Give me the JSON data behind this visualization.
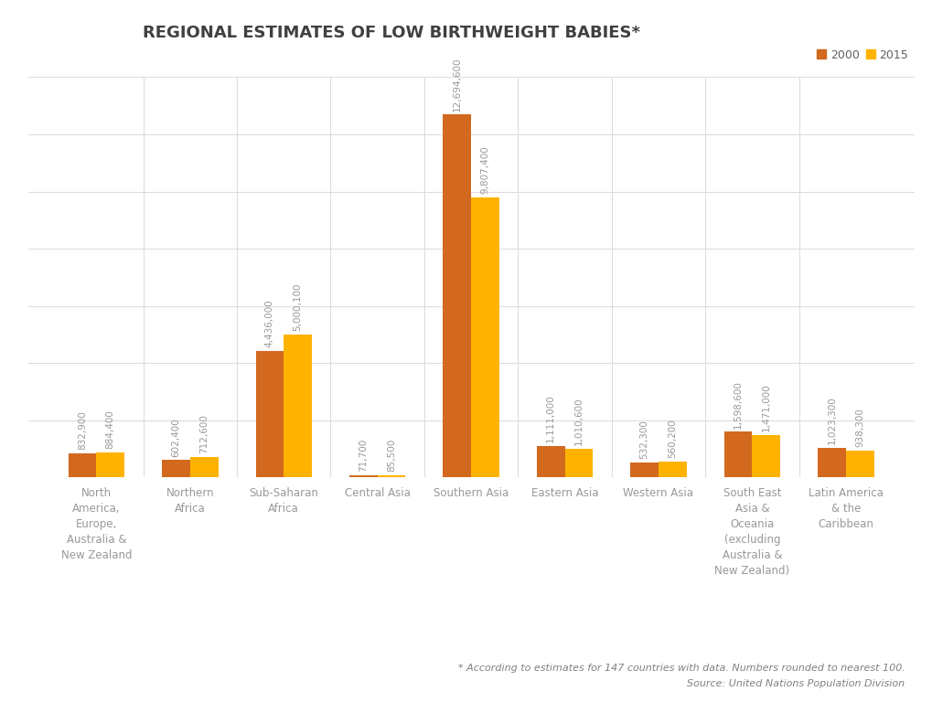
{
  "title": "REGIONAL ESTIMATES OF LOW BIRTHWEIGHT BABIES*",
  "title_fontsize": 13,
  "categories": [
    "North\nAmerica,\nEurope,\nAustralia &\nNew Zealand",
    "Northern\nAfrica",
    "Sub-Saharan\nAfrica",
    "Central Asia",
    "Southern Asia",
    "Eastern Asia",
    "Western Asia",
    "South East\nAsia &\nOceania\n(excluding\nAustralia &\nNew Zealand)",
    "Latin America\n& the\nCaribbean"
  ],
  "values_2000": [
    832900,
    602400,
    4436000,
    71700,
    12694600,
    1111000,
    532300,
    1598600,
    1023300
  ],
  "values_2015": [
    884400,
    712600,
    5000100,
    85500,
    9807400,
    1010600,
    560200,
    1471000,
    938300
  ],
  "labels_2000": [
    "832,900",
    "602,400",
    "4,436,000",
    "71,700",
    "12,694,600",
    "1,111,000",
    "532,300",
    "1,598,600",
    "1,023,300"
  ],
  "labels_2015": [
    "884,400",
    "712,600",
    "5,000,100",
    "85,500",
    "9,807,400",
    "1,010,600",
    "560,200",
    "1,471,000",
    "938,300"
  ],
  "color_2000": "#D2691E",
  "color_2015": "#FFB300",
  "legend_2000": "2000",
  "legend_2015": "2015",
  "footnote": "* According to estimates for 147 countries with data. Numbers rounded to nearest 100.",
  "source": "Source: United Nations Population Division",
  "background_color": "#FFFFFF",
  "bar_width": 0.3,
  "ylim": [
    0,
    14000000
  ],
  "grid_color": "#DDDDDD",
  "label_color": "#999999",
  "label_fontsize": 7.5,
  "xtick_fontsize": 8.5,
  "xtick_color": "#999999"
}
